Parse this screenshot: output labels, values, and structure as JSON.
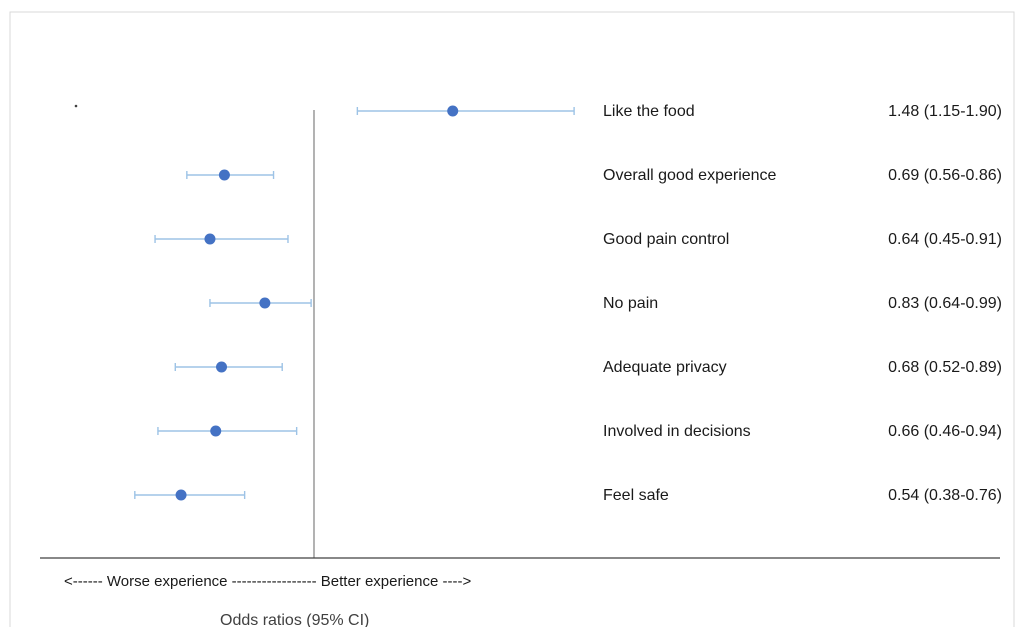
{
  "chart_data": {
    "type": "forest",
    "title": "",
    "xlabel": "Odds ratios (95% CI)",
    "direction_label": "<------ Worse experience ----------------- Better experience ---->",
    "reference_value": 1,
    "xlim": [
      0.3,
      2.0
    ],
    "colors": {
      "point": "#4472c4",
      "ci": "#9dc3e6",
      "reference_line": "#808080",
      "axis": "#404040"
    },
    "rows": [
      {
        "label": "Like the food",
        "or": 1.48,
        "ci_low": 1.15,
        "ci_high": 1.9,
        "text": "1.48 (1.15-1.90)"
      },
      {
        "label": "Overall good experience",
        "or": 0.69,
        "ci_low": 0.56,
        "ci_high": 0.86,
        "text": "0.69 (0.56-0.86)"
      },
      {
        "label": "Good pain control",
        "or": 0.64,
        "ci_low": 0.45,
        "ci_high": 0.91,
        "text": "0.64 (0.45-0.91)"
      },
      {
        "label": "No pain",
        "or": 0.83,
        "ci_low": 0.64,
        "ci_high": 0.99,
        "text": "0.83 (0.64-0.99)"
      },
      {
        "label": "Adequate privacy",
        "or": 0.68,
        "ci_low": 0.52,
        "ci_high": 0.89,
        "text": "0.68 (0.52-0.89)"
      },
      {
        "label": "Involved in decisions",
        "or": 0.66,
        "ci_low": 0.46,
        "ci_high": 0.94,
        "text": "0.66 (0.46-0.94)"
      },
      {
        "label": "Feel safe",
        "or": 0.54,
        "ci_low": 0.38,
        "ci_high": 0.76,
        "text": "0.54 (0.38-0.76)"
      }
    ]
  }
}
